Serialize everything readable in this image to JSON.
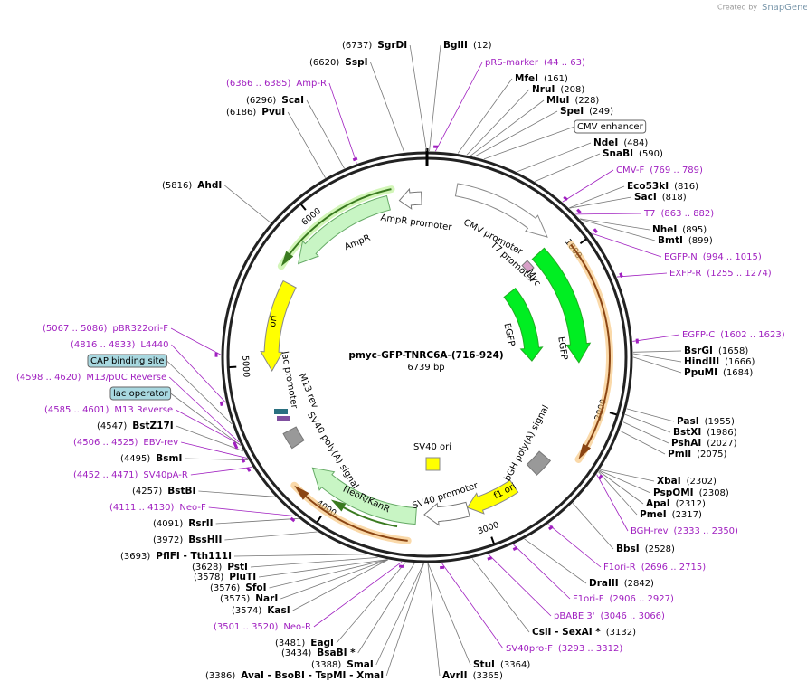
{
  "header": {
    "credit": "Created by",
    "brand": "SnapGene"
  },
  "plasmid": {
    "name": "pmyc-GFP-TNRC6A-(716-924)",
    "size": "6739 bp"
  },
  "ruler": [
    "1000",
    "2000",
    "3000",
    "4000",
    "5000",
    "6000"
  ],
  "sites": [
    [
      "(6737)",
      "SgrDI"
    ],
    [
      "BglII",
      "(12)"
    ],
    [
      "(6620)",
      "SspI"
    ],
    [
      "MfeI",
      "(161)"
    ],
    [
      "NruI",
      "(208)"
    ],
    [
      "(6296)",
      "ScaI"
    ],
    [
      "MluI",
      "(228)"
    ],
    [
      "(6186)",
      "PvuI"
    ],
    [
      "SpeI",
      "(249)"
    ],
    [
      "NdeI",
      "(484)"
    ],
    [
      "SnaBI",
      "(590)"
    ],
    [
      "(5816)",
      "AhdI"
    ],
    [
      "Eco53kI",
      "(816)"
    ],
    [
      "SacI",
      "(818)"
    ],
    [
      "NheI",
      "(895)"
    ],
    [
      "BmtI",
      "(899)"
    ],
    [
      "BsrGI",
      "(1658)"
    ],
    [
      "HindIII",
      "(1666)"
    ],
    [
      "PpuMI",
      "(1684)"
    ],
    [
      "PasI",
      "(1955)"
    ],
    [
      "BstXI",
      "(1986)"
    ],
    [
      "PshAI",
      "(2027)"
    ],
    [
      "PmlI",
      "(2075)"
    ],
    [
      "XbaI",
      "(2302)"
    ],
    [
      "PspOMI",
      "(2308)"
    ],
    [
      "ApaI",
      "(2312)"
    ],
    [
      "PmeI",
      "(2317)"
    ],
    [
      "BbsI",
      "(2528)"
    ],
    [
      "DraIII",
      "(2842)"
    ],
    [
      "CsiI - SexAI *",
      "(3132)"
    ],
    [
      "StuI",
      "(3364)"
    ],
    [
      "AvrII",
      "(3365)"
    ],
    [
      "(3386)",
      "AvaI - BsoBI - TspMI - XmaI"
    ],
    [
      "(3388)",
      "SmaI"
    ],
    [
      "(3434)",
      "BsaBI *"
    ],
    [
      "(3481)",
      "EagI"
    ],
    [
      "(3574)",
      "KasI"
    ],
    [
      "(3575)",
      "NarI"
    ],
    [
      "(3576)",
      "SfoI"
    ],
    [
      "(3578)",
      "PluTI"
    ],
    [
      "(3628)",
      "PstI"
    ],
    [
      "(3693)",
      "PflFI - Tth111I"
    ],
    [
      "(3972)",
      "BssHII"
    ],
    [
      "(4091)",
      "RsrII"
    ],
    [
      "(4257)",
      "BstBI"
    ],
    [
      "(4495)",
      "BsmI"
    ],
    [
      "(4547)",
      "BstZ17I"
    ]
  ],
  "primers": [
    [
      "pRS-marker",
      "(44 .. 63)"
    ],
    [
      "(6366 .. 6385)",
      "Amp-R"
    ],
    [
      "CMV-F",
      "(769 .. 789)"
    ],
    [
      "T7",
      "(863 .. 882)"
    ],
    [
      "EGFP-N",
      "(994 .. 1015)"
    ],
    [
      "EXFP-R",
      "(1255 .. 1274)"
    ],
    [
      "EGFP-C",
      "(1602 .. 1623)"
    ],
    [
      "BGH-rev",
      "(2333 .. 2350)"
    ],
    [
      "F1ori-R",
      "(2696 .. 2715)"
    ],
    [
      "F1ori-F",
      "(2906 .. 2927)"
    ],
    [
      "pBABE 3'",
      "(3046 .. 3066)"
    ],
    [
      "SV40pro-F",
      "(3293 .. 3312)"
    ],
    [
      "(3501 .. 3520)",
      "Neo-R"
    ],
    [
      "(4111 .. 4130)",
      "Neo-F"
    ],
    [
      "(4452 .. 4471)",
      "SV40pA-R"
    ],
    [
      "(4506 .. 4525)",
      "EBV-rev"
    ],
    [
      "(4585 .. 4601)",
      "M13 Reverse"
    ],
    [
      "(4598 .. 4620)",
      "M13/pUC Reverse"
    ],
    [
      "(4816 .. 4833)",
      "L4440"
    ],
    [
      "(5067 .. 5086)",
      "pBR322ori-F"
    ]
  ],
  "boxed_features": [
    "CMV enhancer",
    "CAP binding site",
    "lac operator"
  ],
  "features": [
    "AmpR promoter",
    "AmpR",
    "ori",
    "CMV promoter",
    "T7 promoter",
    "Myc",
    "EGFP",
    "EGFP",
    "lac promoter",
    "M13 rev",
    "SV40 poly(A) signal",
    "NeoR/KanR",
    "SV40 promoter",
    "SV40 ori",
    "f1 ori",
    "bGH poly(A) signal"
  ]
}
